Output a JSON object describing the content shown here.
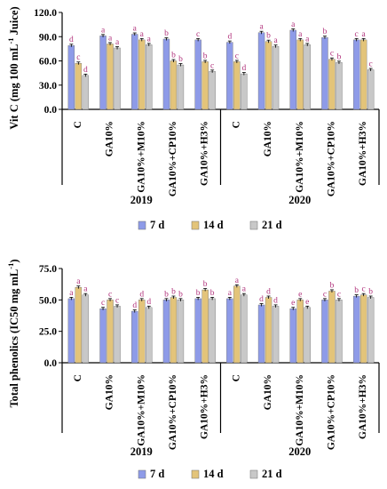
{
  "chart_data": [
    {
      "type": "bar",
      "ylabel_main": "Vit C (mg 100 mL",
      "ylabel_exp": "-1",
      "ylabel_rest": " Juice)",
      "ylim": [
        0,
        120
      ],
      "yticks": [
        "0.0",
        "30.0",
        "60.0",
        "90.0",
        "120.0"
      ],
      "tick_values": [
        0,
        30,
        60,
        90,
        120
      ],
      "grid": false,
      "legend_position": "bottom",
      "categories": [
        "C",
        "GA10%",
        "GA10%+M10%",
        "GA10%+CP10%",
        "GA10%+H3%",
        "C",
        "GA10%",
        "GA10%+M10%",
        "GA10%+CP10%",
        "GA10%+H3%"
      ],
      "year_groups": [
        {
          "label": "2019",
          "count": 5
        },
        {
          "label": "2020",
          "count": 5
        }
      ],
      "series": [
        {
          "name": "7 d",
          "color": "#8e9be8",
          "values": [
            79,
            91,
            93,
            87,
            86,
            83,
            95,
            98,
            89,
            86
          ],
          "letters": [
            "d",
            "a",
            "a",
            "b",
            "c",
            "d",
            "a",
            "a",
            "b",
            "c"
          ]
        },
        {
          "name": "14 d",
          "color": "#e3c47a",
          "values": [
            57,
            81,
            86,
            60,
            59,
            59,
            84,
            86,
            62,
            86
          ],
          "letters": [
            "c",
            "a",
            "a",
            "b",
            "b",
            "c",
            "b",
            "a",
            "c",
            "a"
          ]
        },
        {
          "name": "21 d",
          "color": "#c8c8c8",
          "values": [
            42,
            76,
            80,
            55,
            47,
            44,
            78,
            80,
            58,
            49
          ],
          "letters": [
            "d",
            "a",
            "a",
            "b",
            "c",
            "d",
            "a",
            "a",
            "b",
            "c"
          ]
        }
      ]
    },
    {
      "type": "bar",
      "ylabel_main": "Total phenolics (IC50 mg mL",
      "ylabel_exp": "-1",
      "ylabel_rest": ")",
      "ylim": [
        0,
        75
      ],
      "yticks": [
        "0.0",
        "25.0",
        "50.0",
        "75.0"
      ],
      "tick_values": [
        0,
        25,
        50,
        75
      ],
      "grid": false,
      "legend_position": "bottom",
      "categories": [
        "C",
        "GA10%",
        "GA10%+M10%",
        "GA10%+CP10%",
        "GA10%+H3%",
        "C",
        "GA10%",
        "GA10%+M10%",
        "GA10%+CP10%",
        "GA10%+H3%"
      ],
      "year_groups": [
        {
          "label": "2019",
          "count": 5
        },
        {
          "label": "2020",
          "count": 5
        }
      ],
      "series": [
        {
          "name": "7 d",
          "color": "#8e9be8",
          "values": [
            51,
            43,
            41,
            50,
            51,
            51,
            46,
            43,
            50,
            53
          ],
          "letters": [
            "a",
            "c",
            "d",
            "b",
            "b",
            "a",
            "d",
            "e",
            "c",
            "b"
          ]
        },
        {
          "name": "14 d",
          "color": "#e3c47a",
          "values": [
            60,
            50,
            50,
            52,
            58,
            61,
            52,
            50,
            57,
            54
          ],
          "letters": [
            "a",
            "c",
            "d",
            "b",
            "b",
            "a",
            "d",
            "e",
            "b",
            "c"
          ]
        },
        {
          "name": "21 d",
          "color": "#c8c8c8",
          "values": [
            54,
            45,
            44,
            50,
            51,
            54,
            45,
            44,
            50,
            52
          ],
          "letters": [
            "a",
            "c",
            "d",
            "b",
            "b",
            "a",
            "d",
            "e",
            "c",
            "b"
          ]
        }
      ]
    }
  ]
}
